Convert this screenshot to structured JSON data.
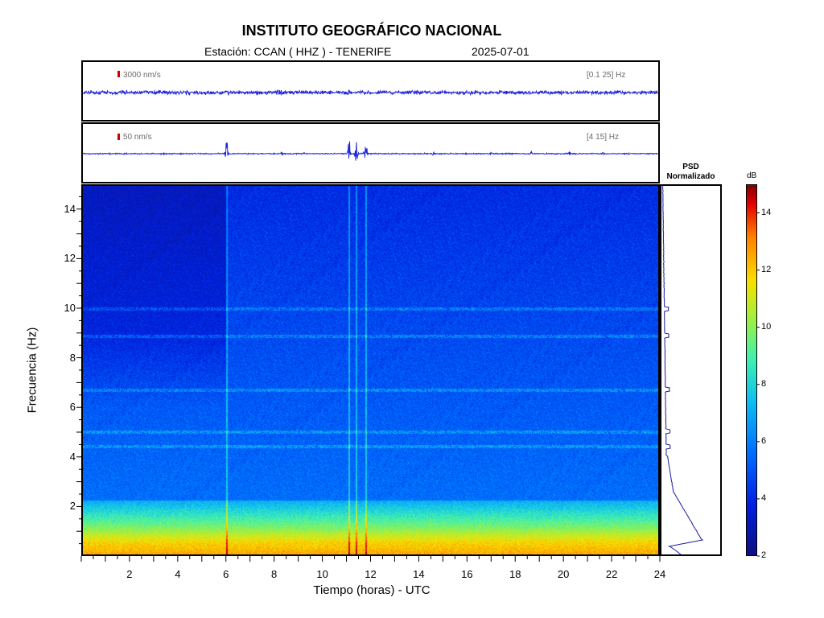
{
  "header": {
    "title": "INSTITUTO GEOGRÁFICO NACIONAL",
    "station": "Estación:  CCAN ( HHZ ) - TENERIFE",
    "date": "2025-07-01"
  },
  "waveform_top": {
    "scale": "3000 nm/s",
    "band": "[0.1 25] Hz"
  },
  "waveform_bottom": {
    "scale": "50 nm/s",
    "band": "[4 15] Hz"
  },
  "psd": {
    "title_line1": "PSD",
    "title_line2": "Normalizado"
  },
  "colorbar": {
    "unit": "dB",
    "ticks": [
      "2",
      "4",
      "6",
      "8",
      "10",
      "12",
      "14"
    ],
    "range": [
      2,
      15
    ],
    "colors": [
      "#0d1080",
      "#0020e0",
      "#0070ff",
      "#10c0f0",
      "#40f0b0",
      "#a0f040",
      "#f8e000",
      "#ff8000",
      "#e00000",
      "#800000"
    ]
  },
  "chart_data": {
    "type": "heatmap",
    "xlabel": "Tiempo (horas) - UTC",
    "ylabel": "Frecuencia  (Hz)",
    "xlim": [
      0,
      24
    ],
    "ylim": [
      0,
      15
    ],
    "x_ticks": [
      "2",
      "4",
      "6",
      "8",
      "10",
      "12",
      "14",
      "16",
      "18",
      "20",
      "22",
      "24"
    ],
    "y_ticks": [
      "2",
      "4",
      "6",
      "8",
      "10",
      "12",
      "14"
    ],
    "value_unit": "dB",
    "description_of_features": {
      "low_freq_band_hz": [
        0,
        2
      ],
      "low_freq_level_db": 12,
      "background_level_db": 4,
      "strong_events_hours": [
        6.0,
        11.1,
        11.4,
        11.8
      ],
      "spectral_lines_hz": [
        10.0,
        8.9,
        6.7,
        5.0,
        4.4
      ]
    }
  }
}
